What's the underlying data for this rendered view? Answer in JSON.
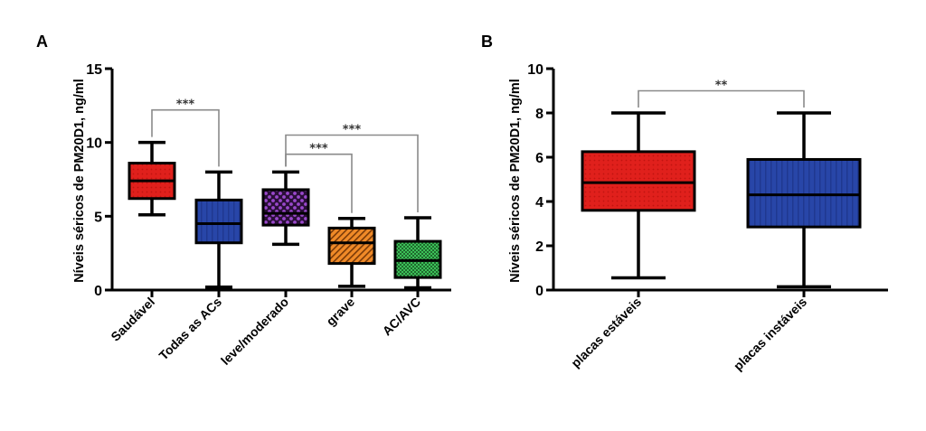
{
  "chart_data": [
    {
      "type": "boxplot",
      "panel": "A",
      "ylabel": "Níveis séricos de PM20D1, ng/ml",
      "xlabel": "",
      "ylim": [
        0,
        15
      ],
      "yticks": [
        0,
        5,
        10,
        15
      ],
      "grid": false,
      "categories": [
        "Saudável",
        "Todas as ACs",
        "leve/moderado",
        "grave",
        "AC/AVC"
      ],
      "boxes": [
        {
          "name": "Saudável",
          "min": 5.1,
          "q1": 6.2,
          "median": 7.4,
          "q3": 8.6,
          "max": 10.0,
          "color": "#e0201c",
          "pattern": "dots"
        },
        {
          "name": "Todas as ACs",
          "min": 0.2,
          "q1": 3.2,
          "median": 4.5,
          "q3": 6.1,
          "max": 8.0,
          "color": "#2846a8",
          "pattern": "vertical-lines"
        },
        {
          "name": "leve/moderado",
          "min": 3.1,
          "q1": 4.4,
          "median": 5.2,
          "q3": 6.8,
          "max": 8.0,
          "color": "#8a3cb8",
          "pattern": "checker"
        },
        {
          "name": "grave",
          "min": 0.25,
          "q1": 1.8,
          "median": 3.2,
          "q3": 4.2,
          "max": 4.85,
          "color": "#f08a28",
          "pattern": "diagonal"
        },
        {
          "name": "AC/AVC",
          "min": 0.15,
          "q1": 0.85,
          "median": 2.0,
          "q3": 3.3,
          "max": 4.9,
          "color": "#2e9a44",
          "pattern": "checker-fine"
        }
      ],
      "significance": [
        {
          "from": "Saudável",
          "to": "Todas as ACs",
          "label": "***",
          "level": 12.2
        },
        {
          "from": "leve/moderado",
          "to": "AC/AVC",
          "label": "***",
          "level": 10.5
        },
        {
          "from": "leve/moderado",
          "to": "grave",
          "label": "***",
          "level": 9.2
        }
      ]
    },
    {
      "type": "boxplot",
      "panel": "B",
      "ylabel": "Níveis séricos de PM20D1, ng/ml",
      "xlabel": "",
      "ylim": [
        0,
        10
      ],
      "yticks": [
        0,
        2,
        4,
        6,
        8,
        10
      ],
      "grid": false,
      "categories": [
        "placas estáveis",
        "placas instáveis"
      ],
      "boxes": [
        {
          "name": "placas estáveis",
          "min": 0.55,
          "q1": 3.6,
          "median": 4.85,
          "q3": 6.25,
          "max": 8.0,
          "color": "#e0201c",
          "pattern": "dots"
        },
        {
          "name": "placas instáveis",
          "min": 0.15,
          "q1": 2.85,
          "median": 4.3,
          "q3": 5.9,
          "max": 8.0,
          "color": "#2846a8",
          "pattern": "vertical-lines"
        }
      ],
      "significance": [
        {
          "from": "placas estáveis",
          "to": "placas instáveis",
          "label": "**",
          "level": 9.0
        }
      ]
    }
  ]
}
